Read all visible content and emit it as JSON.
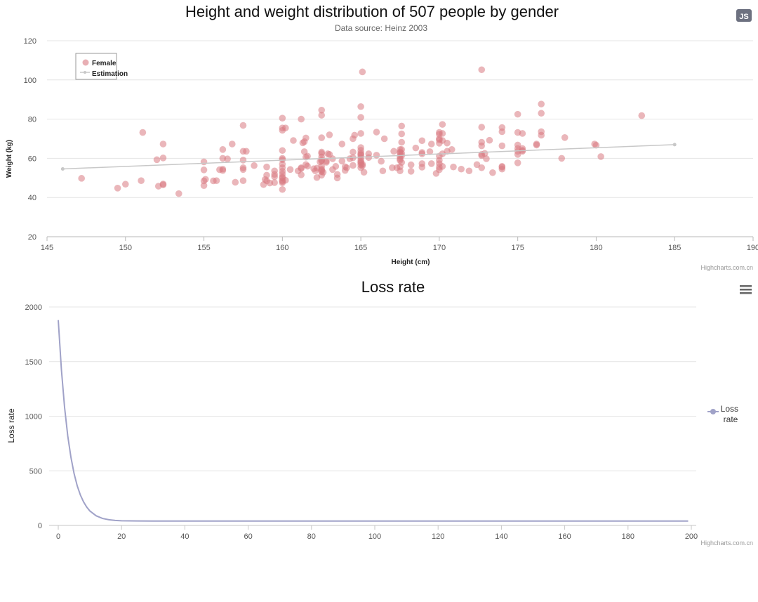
{
  "chart_data": [
    {
      "type": "scatter",
      "title": "Height and weight distribution of 507 people by gender",
      "subtitle": "Data source: Heinz 2003",
      "xlabel": "Height (cm)",
      "ylabel": "Weight (kg)",
      "xlim": [
        145,
        190
      ],
      "ylim": [
        20,
        120
      ],
      "x_ticks": [
        145,
        150,
        155,
        160,
        165,
        170,
        175,
        180,
        185,
        190
      ],
      "y_ticks": [
        20,
        40,
        60,
        80,
        100,
        120
      ],
      "grid": true,
      "legend": "top-left",
      "credit": "Highcharts.com.cn",
      "button_label": "JS",
      "colors": {
        "female": "#d97a82",
        "estimation": "#c8c8c8"
      },
      "series": [
        {
          "name": "Female",
          "type": "scatter",
          "points": [
            [
              147.2,
              49.8
            ],
            [
              149.5,
              44.8
            ],
            [
              150,
              46.8
            ],
            [
              151,
              48.6
            ],
            [
              151.1,
              73.2
            ],
            [
              152,
              59.3
            ],
            [
              152.1,
              45.8
            ],
            [
              152.4,
              46.5
            ],
            [
              152.4,
              46.9
            ],
            [
              152.4,
              60.2
            ],
            [
              152.4,
              67.3
            ],
            [
              153.4,
              42
            ],
            [
              155,
              46.1
            ],
            [
              155,
              48.5
            ],
            [
              155,
              54.1
            ],
            [
              155,
              58.2
            ],
            [
              155.1,
              49.3
            ],
            [
              155.6,
              48.5
            ],
            [
              155.8,
              48.6
            ],
            [
              156,
              54.2
            ],
            [
              156.2,
              53.8
            ],
            [
              156.2,
              54.5
            ],
            [
              156.2,
              60
            ],
            [
              156.2,
              64.5
            ],
            [
              156.5,
              59.7
            ],
            [
              156.8,
              67.3
            ],
            [
              157,
              47.8
            ],
            [
              157.5,
              48.6
            ],
            [
              157.5,
              54.3
            ],
            [
              157.5,
              55.2
            ],
            [
              157.5,
              59.1
            ],
            [
              157.5,
              63.6
            ],
            [
              157.5,
              76.8
            ],
            [
              157.7,
              63.6
            ],
            [
              158.2,
              56.3
            ],
            [
              158.8,
              46.6
            ],
            [
              158.9,
              49.2
            ],
            [
              159,
              51.4
            ],
            [
              159,
              55.6
            ],
            [
              159,
              48.5
            ],
            [
              159.2,
              47.4
            ],
            [
              159.5,
              47.6
            ],
            [
              159.5,
              50.6
            ],
            [
              159.5,
              51.8
            ],
            [
              159.5,
              53.6
            ],
            [
              160,
              44.1
            ],
            [
              160,
              47.5
            ],
            [
              160,
              48.2
            ],
            [
              160,
              48.7
            ],
            [
              160,
              50
            ],
            [
              160,
              50.5
            ],
            [
              160,
              52
            ],
            [
              160,
              53.4
            ],
            [
              160,
              55.2
            ],
            [
              160,
              57
            ],
            [
              160,
              59.3
            ],
            [
              160,
              60
            ],
            [
              160,
              64
            ],
            [
              160,
              74.3
            ],
            [
              160,
              75.5
            ],
            [
              160,
              80.5
            ],
            [
              160.2,
              48.8
            ],
            [
              160.2,
              75.5
            ],
            [
              160.5,
              54.3
            ],
            [
              160.7,
              69.1
            ],
            [
              161,
              53.6
            ],
            [
              161.2,
              51.6
            ],
            [
              161.2,
              54.8
            ],
            [
              161.2,
              55.2
            ],
            [
              161.2,
              80
            ],
            [
              161.3,
              67.9
            ],
            [
              161.4,
              63.4
            ],
            [
              161.4,
              68.5
            ],
            [
              161.5,
              56.8
            ],
            [
              161.5,
              60.6
            ],
            [
              161.5,
              70.4
            ],
            [
              161.6,
              56
            ],
            [
              161.6,
              61.1
            ],
            [
              162,
              54.7
            ],
            [
              162.1,
              53.6
            ],
            [
              162.2,
              50.2
            ],
            [
              162.2,
              55
            ],
            [
              162.4,
              58.2
            ],
            [
              162.5,
              56
            ],
            [
              162.5,
              51.4
            ],
            [
              162.5,
              53.2
            ],
            [
              162.5,
              53.9
            ],
            [
              162.5,
              54.5
            ],
            [
              162.5,
              58.7
            ],
            [
              162.5,
              59.1
            ],
            [
              162.5,
              60.7
            ],
            [
              162.5,
              62.5
            ],
            [
              162.5,
              63.2
            ],
            [
              162.5,
              70.5
            ],
            [
              162.5,
              82
            ],
            [
              162.5,
              84.6
            ],
            [
              162.6,
              52.9
            ],
            [
              162.8,
              58
            ],
            [
              162.8,
              58.6
            ],
            [
              162.9,
              62.3
            ],
            [
              163,
              62
            ],
            [
              163,
              72
            ],
            [
              163.2,
              54.3
            ],
            [
              163.2,
              59.8
            ],
            [
              163.4,
              55.9
            ],
            [
              163.5,
              50
            ],
            [
              163.5,
              51.8
            ],
            [
              163.8,
              58.6
            ],
            [
              163.8,
              67.3
            ],
            [
              164,
              53.8
            ],
            [
              164,
              55.7
            ],
            [
              164.1,
              55.2
            ],
            [
              164.3,
              59.8
            ],
            [
              164.5,
              56.4
            ],
            [
              164.5,
              60.3
            ],
            [
              164.5,
              63.2
            ],
            [
              164.5,
              70
            ],
            [
              164.6,
              71.8
            ],
            [
              165,
              55.2
            ],
            [
              165,
              56.7
            ],
            [
              165,
              57.7
            ],
            [
              165,
              58.2
            ],
            [
              165,
              59.1
            ],
            [
              165,
              60.4
            ],
            [
              165,
              61.6
            ],
            [
              165,
              62
            ],
            [
              165,
              62.7
            ],
            [
              165,
              64.1
            ],
            [
              165,
              65.5
            ],
            [
              165,
              72.7
            ],
            [
              165,
              80.9
            ],
            [
              165,
              86.4
            ],
            [
              165.1,
              56.2
            ],
            [
              165.1,
              57
            ],
            [
              165.1,
              104.1
            ],
            [
              165.2,
              52.9
            ],
            [
              165.5,
              60.4
            ],
            [
              165.5,
              62.3
            ],
            [
              166,
              61.6
            ],
            [
              166,
              73.4
            ],
            [
              166.3,
              58.5
            ],
            [
              166.4,
              53.6
            ],
            [
              166.5,
              70
            ],
            [
              167,
              55.2
            ],
            [
              167.1,
              63.6
            ],
            [
              167.3,
              55.2
            ],
            [
              167.5,
              53.6
            ],
            [
              167.5,
              55.7
            ],
            [
              167.5,
              59
            ],
            [
              167.5,
              59.8
            ],
            [
              167.5,
              61
            ],
            [
              167.5,
              62.7
            ],
            [
              167.5,
              63.2
            ],
            [
              167.5,
              64.5
            ],
            [
              167.6,
              57.9
            ],
            [
              167.6,
              61.3
            ],
            [
              167.6,
              62.6
            ],
            [
              167.6,
              64.5
            ],
            [
              167.6,
              68.2
            ],
            [
              167.6,
              72.5
            ],
            [
              167.6,
              76.5
            ],
            [
              168.2,
              53.4
            ],
            [
              168.2,
              56.7
            ],
            [
              168.5,
              65.3
            ],
            [
              168.9,
              55.5
            ],
            [
              168.9,
              57.3
            ],
            [
              168.9,
              62.3
            ],
            [
              168.9,
              63
            ],
            [
              168.9,
              69
            ],
            [
              169.4,
              63.4
            ],
            [
              169.5,
              57.3
            ],
            [
              169.5,
              67.3
            ],
            [
              169.8,
              52.3
            ],
            [
              170,
              54.2
            ],
            [
              170,
              55.5
            ],
            [
              170,
              57.3
            ],
            [
              170,
              59
            ],
            [
              170,
              61.1
            ],
            [
              170,
              67.7
            ],
            [
              170,
              69.4
            ],
            [
              170,
              70
            ],
            [
              170,
              72.3
            ],
            [
              170,
              73.2
            ],
            [
              170.2,
              55.9
            ],
            [
              170.2,
              62.3
            ],
            [
              170.2,
              69.1
            ],
            [
              170.2,
              72.7
            ],
            [
              170.2,
              77.3
            ],
            [
              170.5,
              63.6
            ],
            [
              170.5,
              67.8
            ],
            [
              170.8,
              64.5
            ],
            [
              170.9,
              55.6
            ],
            [
              171.4,
              54.5
            ],
            [
              171.9,
              53.6
            ],
            [
              172.4,
              56.8
            ],
            [
              172.7,
              55.2
            ],
            [
              172.7,
              61.4
            ],
            [
              172.7,
              62
            ],
            [
              172.7,
              66.4
            ],
            [
              172.7,
              68.2
            ],
            [
              172.7,
              75.9
            ],
            [
              172.7,
              105.2
            ],
            [
              172.9,
              62.5
            ],
            [
              173,
              59.8
            ],
            [
              173.2,
              69.2
            ],
            [
              173.4,
              52.7
            ],
            [
              174,
              54.5
            ],
            [
              174,
              55.5
            ],
            [
              174,
              55.9
            ],
            [
              174,
              66.4
            ],
            [
              174,
              73.6
            ],
            [
              174,
              75.7
            ],
            [
              175,
              57.7
            ],
            [
              175,
              62
            ],
            [
              175,
              63.6
            ],
            [
              175,
              65
            ],
            [
              175,
              66.8
            ],
            [
              175,
              73.2
            ],
            [
              175,
              82.5
            ],
            [
              175.3,
              63.6
            ],
            [
              175.3,
              64.1
            ],
            [
              175.3,
              65
            ],
            [
              175.3,
              72.7
            ],
            [
              176.2,
              66.8
            ],
            [
              176.2,
              67.3
            ],
            [
              176.5,
              71.8
            ],
            [
              176.5,
              73.6
            ],
            [
              176.5,
              83
            ],
            [
              176.5,
              87.7
            ],
            [
              177.8,
              60
            ],
            [
              178,
              70.6
            ],
            [
              179.9,
              67.3
            ],
            [
              180,
              66.7
            ],
            [
              180.3,
              60.9
            ],
            [
              182.9,
              81.8
            ]
          ]
        },
        {
          "name": "Estimation",
          "type": "line",
          "points": [
            [
              146,
              54.6
            ],
            [
              185,
              67
            ]
          ]
        }
      ]
    },
    {
      "type": "line",
      "title": "Loss rate",
      "xlabel": "",
      "ylabel": "Loss rate",
      "xlim": [
        0,
        200
      ],
      "ylim": [
        0,
        2000
      ],
      "x_ticks": [
        0,
        20,
        40,
        60,
        80,
        100,
        120,
        140,
        160,
        180,
        200
      ],
      "y_ticks": [
        0,
        500,
        1000,
        1500,
        2000
      ],
      "grid": true,
      "legend": "right",
      "credit": "Highcharts.com.cn",
      "menu_icon": "hamburger-menu-icon",
      "colors": {
        "line": "#a0a2c8"
      },
      "series": [
        {
          "name": "Loss rate",
          "x": [
            0,
            1,
            2,
            3,
            4,
            5,
            6,
            7,
            8,
            9,
            10,
            12,
            14,
            16,
            18,
            20,
            25,
            30,
            40,
            50,
            60,
            80,
            100,
            120,
            140,
            160,
            180,
            199
          ],
          "values": [
            1880,
            1425,
            1080,
            820,
            625,
            475,
            362,
            278,
            215,
            168,
            132,
            88,
            64,
            52,
            46,
            43,
            41,
            40,
            40,
            40,
            40,
            40,
            40,
            40,
            40,
            40,
            40,
            40
          ]
        }
      ]
    }
  ]
}
